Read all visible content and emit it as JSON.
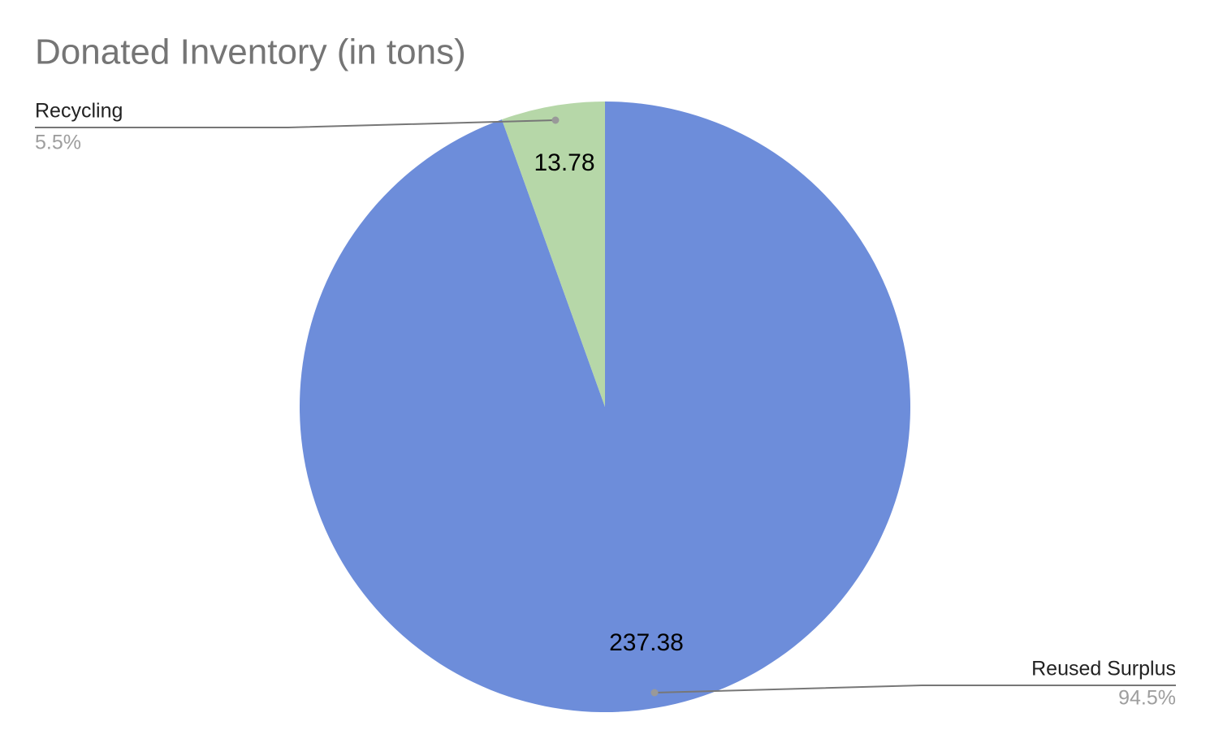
{
  "chart_data": {
    "type": "pie",
    "title": "Donated Inventory (in tons)",
    "categories": [
      "Reused Surplus",
      "Recycling"
    ],
    "values": [
      237.38,
      13.78
    ],
    "percent_labels": [
      "94.5%",
      "5.5%"
    ],
    "colors": [
      "#6d8dda",
      "#b6d7a8"
    ]
  }
}
